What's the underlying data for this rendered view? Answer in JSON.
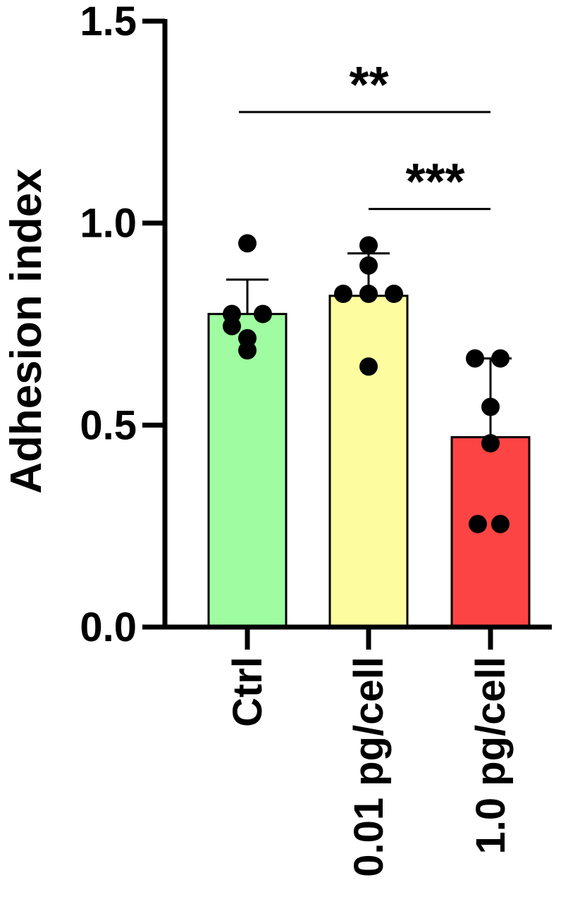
{
  "chart_data": {
    "type": "bar",
    "ylabel": "Adhesion index",
    "xlabel": "",
    "ylim": [
      0,
      1.5
    ],
    "yticks": [
      0.0,
      0.5,
      1.0,
      1.5
    ],
    "ytick_labels": [
      "0.0",
      "0.5",
      "1.0",
      "1.5"
    ],
    "categories": [
      "Ctrl",
      "0.01 pg/cell",
      "1.0 pg/cell"
    ],
    "values": [
      0.775,
      0.82,
      0.47
    ],
    "error_upper": [
      0.86,
      0.925,
      0.665
    ],
    "points": [
      [
        0.95,
        0.775,
        0.775,
        0.745,
        0.715,
        0.685
      ],
      [
        0.945,
        0.895,
        0.825,
        0.825,
        0.825,
        0.645
      ],
      [
        0.665,
        0.665,
        0.545,
        0.455,
        0.255,
        0.255
      ]
    ],
    "colors": [
      "#a0fca0",
      "#fdfda0",
      "#fc4444"
    ],
    "grid": false,
    "significance": [
      {
        "from": 0,
        "to": 2,
        "y": 1.275,
        "label": "**"
      },
      {
        "from": 1,
        "to": 2,
        "y": 1.035,
        "label": "***"
      }
    ]
  }
}
